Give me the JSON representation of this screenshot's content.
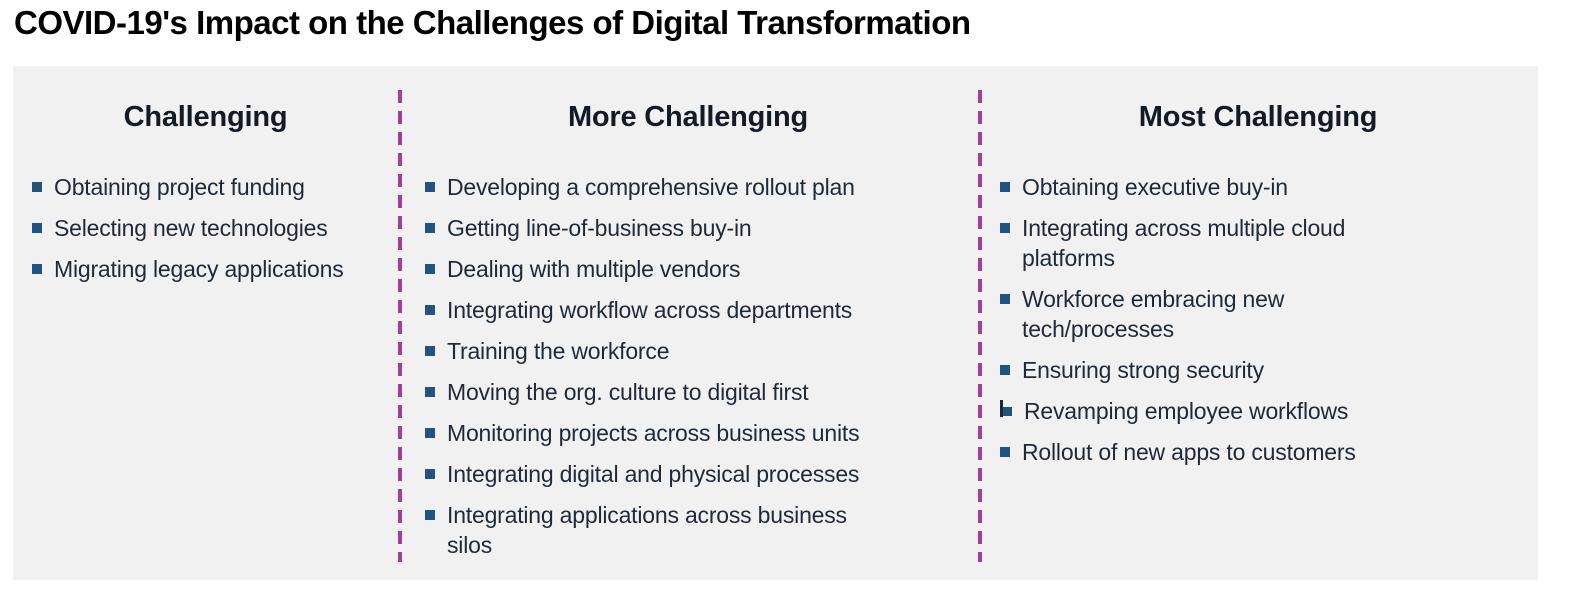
{
  "page": {
    "title": "COVID-19's Impact on the Challenges of Digital Transformation"
  },
  "colors": {
    "panel_bg": "#f1f1f1",
    "title_text": "#000000",
    "heading_text": "#121b26",
    "body_text": "#1e2a38",
    "bullet": "#1f5480",
    "bullet_bar": "#1b2836",
    "divider": "#a53e9b"
  },
  "columns": [
    {
      "heading": "Challenging",
      "items": [
        {
          "text": "Obtaining project funding",
          "marker": "square"
        },
        {
          "text": "Selecting new technologies",
          "marker": "square"
        },
        {
          "text": "Migrating legacy applications",
          "marker": "square"
        }
      ]
    },
    {
      "heading": "More Challenging",
      "items": [
        {
          "text": "Developing a comprehensive rollout plan",
          "marker": "square"
        },
        {
          "text": "Getting line-of-business buy-in",
          "marker": "square"
        },
        {
          "text": "Dealing with multiple vendors",
          "marker": "square"
        },
        {
          "text": "Integrating workflow across departments",
          "marker": "square"
        },
        {
          "text": "Training the workforce",
          "marker": "square"
        },
        {
          "text": "Moving the org. culture to digital first",
          "marker": "square"
        },
        {
          "text": "Monitoring projects across business units",
          "marker": "square"
        },
        {
          "text": "Integrating digital and physical processes",
          "marker": "square"
        },
        {
          "text": "Integrating applications across business\nsilos",
          "marker": "square"
        }
      ]
    },
    {
      "heading": "Most Challenging",
      "items": [
        {
          "text": "Obtaining executive buy-in",
          "marker": "square"
        },
        {
          "text": "Integrating across multiple cloud\nplatforms",
          "marker": "square"
        },
        {
          "text": "Workforce embracing new\ntech/processes",
          "marker": "square"
        },
        {
          "text": "Ensuring strong security",
          "marker": "square"
        },
        {
          "text": "Revamping employee workflows",
          "marker": "l-shape"
        },
        {
          "text": "Rollout of new apps to customers",
          "marker": "square"
        }
      ]
    }
  ]
}
